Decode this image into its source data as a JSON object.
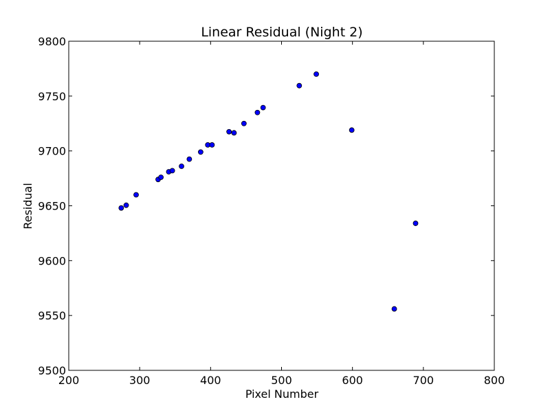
{
  "chart_data": {
    "type": "scatter",
    "title": "Linear Residual (Night 2)",
    "xlabel": "Pixel Number",
    "ylabel": "Residual",
    "xlim": [
      200,
      800
    ],
    "ylim": [
      9500,
      9800
    ],
    "xticks": [
      200,
      300,
      400,
      500,
      600,
      700,
      800
    ],
    "yticks": [
      9500,
      9550,
      9600,
      9650,
      9700,
      9750,
      9800
    ],
    "xtick_labels": [
      "200",
      "300",
      "400",
      "500",
      "600",
      "700",
      "800"
    ],
    "ytick_labels": [
      "9500",
      "9550",
      "9600",
      "9650",
      "9700",
      "9750",
      "9800"
    ],
    "grid": false,
    "legend": "none",
    "marker_color": "#0000ff",
    "marker_edge_color": "#000000",
    "points": [
      {
        "x": 274,
        "y": 9648
      },
      {
        "x": 281,
        "y": 9650.5
      },
      {
        "x": 295,
        "y": 9660
      },
      {
        "x": 326,
        "y": 9674
      },
      {
        "x": 330,
        "y": 9676
      },
      {
        "x": 341,
        "y": 9681
      },
      {
        "x": 346,
        "y": 9682
      },
      {
        "x": 359,
        "y": 9686
      },
      {
        "x": 370,
        "y": 9692.5
      },
      {
        "x": 386,
        "y": 9699
      },
      {
        "x": 396,
        "y": 9705.5
      },
      {
        "x": 402,
        "y": 9705.5
      },
      {
        "x": 426,
        "y": 9717.5
      },
      {
        "x": 433,
        "y": 9716.5
      },
      {
        "x": 447,
        "y": 9725
      },
      {
        "x": 466,
        "y": 9735
      },
      {
        "x": 474,
        "y": 9739.5
      },
      {
        "x": 525,
        "y": 9759.5
      },
      {
        "x": 549,
        "y": 9770
      },
      {
        "x": 599,
        "y": 9719
      },
      {
        "x": 659,
        "y": 9556
      },
      {
        "x": 689,
        "y": 9634
      }
    ]
  }
}
